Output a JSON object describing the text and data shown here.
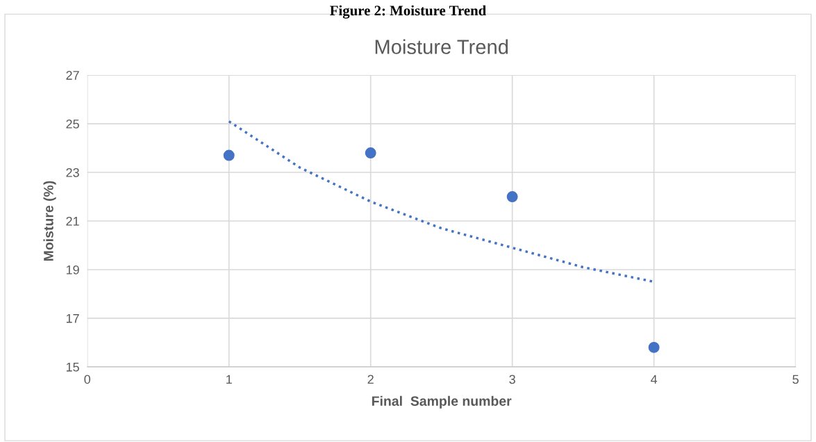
{
  "chart_data": {
    "type": "scatter",
    "title": "Moisture Trend",
    "xlabel": "Final  Sample number",
    "ylabel": "Moisture (%)",
    "annotations": [
      "Figure 2: Moisture Trend"
    ],
    "series": [
      {
        "color": "#4472c4",
        "marker": "circle",
        "x": [
          1,
          2,
          3,
          4
        ],
        "values": [
          23.7,
          23.8,
          22.0,
          15.8
        ]
      },
      {
        "type": "line",
        "color": "#4472c4",
        "line_style": "dotted",
        "marker": "none",
        "x": [
          1,
          1.5,
          2,
          2.5,
          3,
          3.5,
          4
        ],
        "values": [
          25.1,
          23.2,
          21.8,
          20.7,
          19.9,
          19.1,
          18.5
        ]
      }
    ],
    "xlim": [
      0,
      5
    ],
    "xticks": [
      0,
      1,
      2,
      3,
      4,
      5
    ],
    "ylim": [
      15,
      27
    ],
    "yticks": [
      15,
      17,
      19,
      21,
      23,
      25,
      27
    ],
    "grid": true
  }
}
